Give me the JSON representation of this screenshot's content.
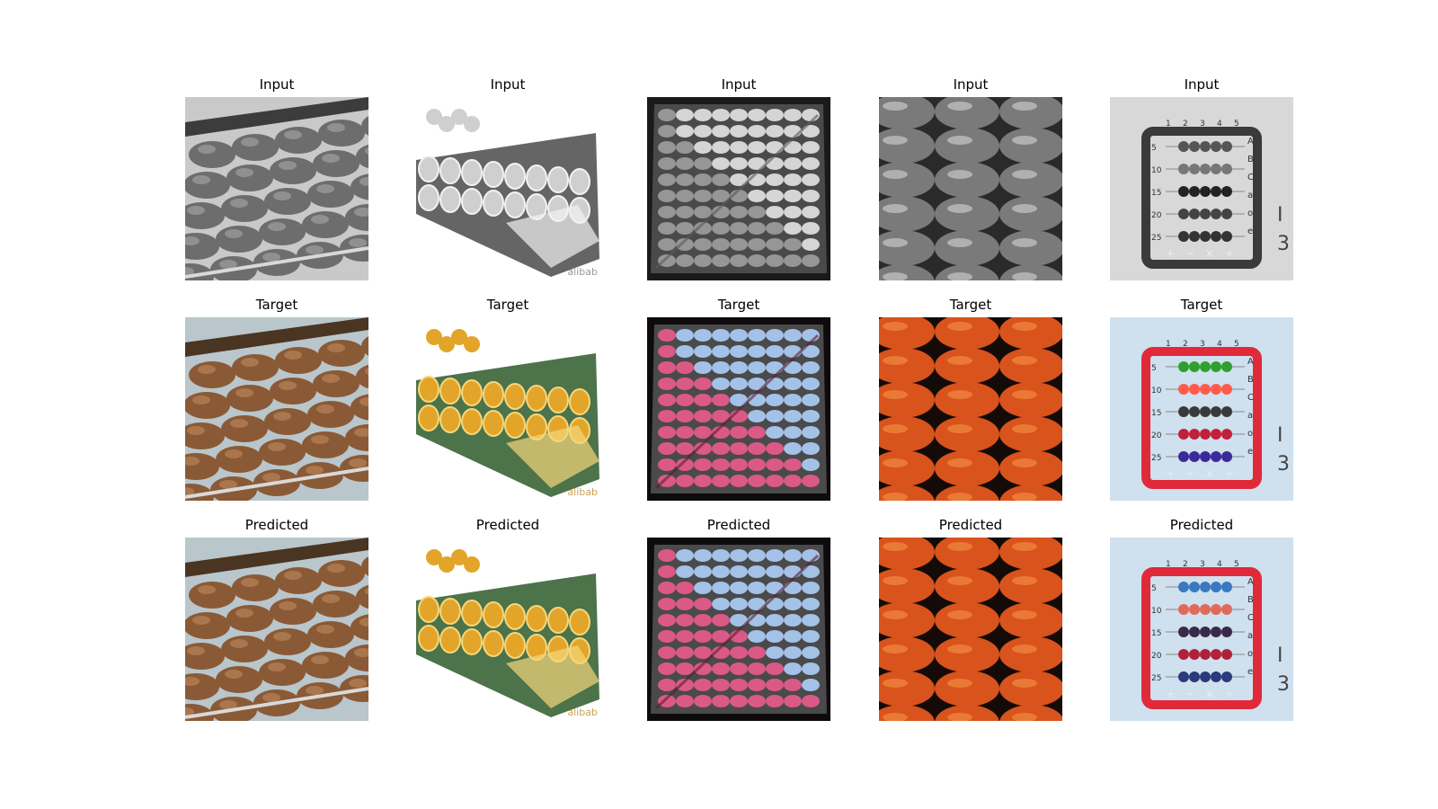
{
  "figure": {
    "rows": [
      {
        "label": "Input"
      },
      {
        "label": "Target"
      },
      {
        "label": "Predicted"
      }
    ],
    "columns": [
      {
        "subject": "abacus-closeup-diagonal"
      },
      {
        "subject": "crystal-abacus-product",
        "watermark": "alibab"
      },
      {
        "subject": "abacus-3d-render"
      },
      {
        "subject": "abacus-beads-closeup"
      },
      {
        "subject": "toy-abacus-with-numbers",
        "row_numbers": [
          "5",
          "10",
          "15",
          "20",
          "25"
        ],
        "col_numbers": [
          "1",
          "2",
          "3",
          "4",
          "5"
        ],
        "side_letters": [
          "A",
          "B",
          "C",
          "a",
          "o",
          "e"
        ],
        "bottom_symbols": [
          "+",
          "−",
          "×",
          "÷"
        ]
      }
    ]
  }
}
